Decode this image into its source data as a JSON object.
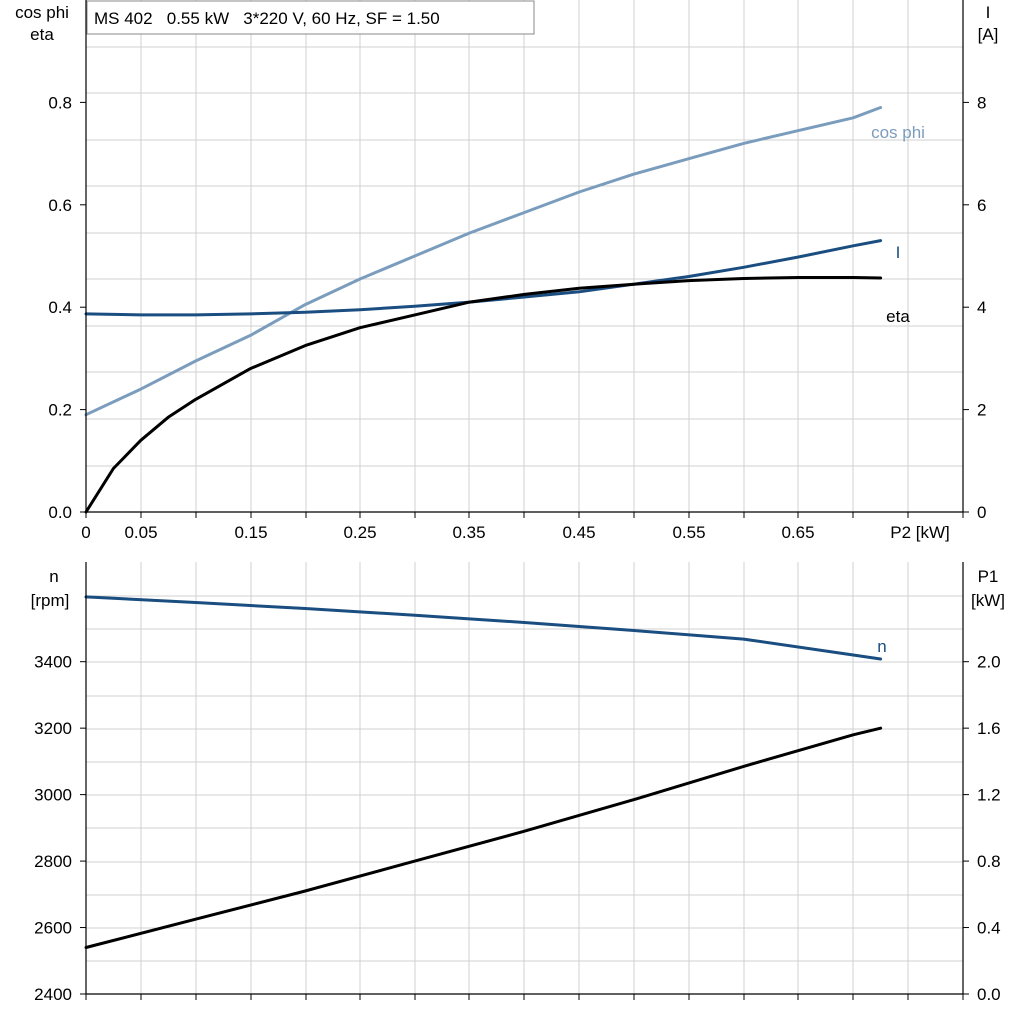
{
  "colors": {
    "cos_phi": "#7b9dbd",
    "current": "#1a4d80",
    "eta": "#000000",
    "speed": "#1a4d80",
    "p1": "#000000",
    "grid": "#d0d0d0"
  },
  "chart_data": [
    {
      "type": "line",
      "title": "MS 402   0.55 kW   3*220 V, 60 Hz, SF = 1.50",
      "xlabel": "P2 [kW]",
      "x_ticks": [
        "0",
        "0.05",
        "0.15",
        "0.25",
        "0.35",
        "0.45",
        "0.55",
        "0.65"
      ],
      "xlim": [
        0,
        0.8
      ],
      "ylabel_left": [
        "cos phi",
        "eta"
      ],
      "ylabel_right": [
        "I",
        "[A]"
      ],
      "ylim_left": [
        0,
        1.0
      ],
      "ylim_right": [
        0,
        10
      ],
      "y_ticks_left": [
        "0.0",
        "0.2",
        "0.4",
        "0.6",
        "0.8"
      ],
      "y_ticks_right": [
        "0",
        "2",
        "4",
        "6",
        "8"
      ],
      "grid": true,
      "series": [
        {
          "name": "cos phi",
          "axis": "left",
          "x": [
            0,
            0.05,
            0.1,
            0.15,
            0.2,
            0.25,
            0.3,
            0.35,
            0.4,
            0.45,
            0.5,
            0.55,
            0.6,
            0.65,
            0.7,
            0.725
          ],
          "y": [
            0.19,
            0.24,
            0.295,
            0.345,
            0.405,
            0.455,
            0.5,
            0.545,
            0.585,
            0.625,
            0.66,
            0.69,
            0.72,
            0.745,
            0.77,
            0.79
          ]
        },
        {
          "name": "I",
          "axis": "right",
          "x": [
            0,
            0.05,
            0.1,
            0.15,
            0.2,
            0.25,
            0.3,
            0.35,
            0.4,
            0.45,
            0.5,
            0.55,
            0.6,
            0.65,
            0.7,
            0.725
          ],
          "y": [
            3.87,
            3.85,
            3.85,
            3.87,
            3.9,
            3.95,
            4.02,
            4.1,
            4.2,
            4.3,
            4.45,
            4.6,
            4.78,
            4.98,
            5.2,
            5.3
          ]
        },
        {
          "name": "eta",
          "axis": "left",
          "x": [
            0,
            0.025,
            0.05,
            0.075,
            0.1,
            0.15,
            0.2,
            0.25,
            0.3,
            0.35,
            0.4,
            0.45,
            0.5,
            0.55,
            0.6,
            0.65,
            0.7,
            0.725
          ],
          "y": [
            0.0,
            0.085,
            0.14,
            0.185,
            0.22,
            0.28,
            0.325,
            0.36,
            0.385,
            0.41,
            0.425,
            0.437,
            0.445,
            0.452,
            0.456,
            0.458,
            0.458,
            0.457
          ]
        }
      ]
    },
    {
      "type": "line",
      "ylabel_left": [
        "n",
        "[rpm]"
      ],
      "ylabel_right": [
        "P1",
        "[kW]"
      ],
      "xlim": [
        0,
        0.8
      ],
      "ylim_left": [
        2400,
        3700
      ],
      "ylim_right": [
        0,
        2.6
      ],
      "y_ticks_left": [
        "2400",
        "2600",
        "2800",
        "3000",
        "3200",
        "3400"
      ],
      "y_ticks_right": [
        "0.0",
        "0.4",
        "0.8",
        "1.2",
        "1.6",
        "2.0"
      ],
      "grid": true,
      "series": [
        {
          "name": "n",
          "axis": "left",
          "x": [
            0,
            0.1,
            0.2,
            0.3,
            0.4,
            0.5,
            0.6,
            0.7,
            0.725
          ],
          "y": [
            3595,
            3578,
            3560,
            3540,
            3518,
            3494,
            3468,
            3420,
            3408
          ]
        },
        {
          "axis": "right",
          "x": [
            0,
            0.1,
            0.2,
            0.3,
            0.4,
            0.5,
            0.6,
            0.7,
            0.725
          ],
          "y": [
            0.28,
            0.45,
            0.62,
            0.8,
            0.98,
            1.17,
            1.37,
            1.56,
            1.6
          ]
        }
      ]
    }
  ]
}
